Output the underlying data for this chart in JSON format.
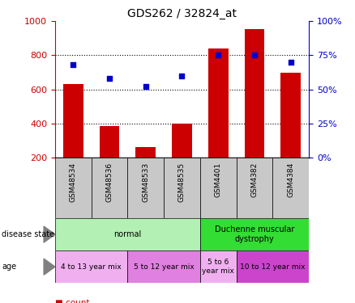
{
  "title": "GDS262 / 32824_at",
  "samples": [
    "GSM48534",
    "GSM48536",
    "GSM48533",
    "GSM48535",
    "GSM4401",
    "GSM4382",
    "GSM4384"
  ],
  "counts": [
    630,
    385,
    260,
    400,
    840,
    955,
    700
  ],
  "percentiles": [
    68,
    58,
    52,
    60,
    75,
    75,
    70
  ],
  "bar_color": "#cc0000",
  "dot_color": "#0000cc",
  "ylim_left": [
    200,
    1000
  ],
  "ylim_right": [
    0,
    100
  ],
  "yticks_left": [
    200,
    400,
    600,
    800,
    1000
  ],
  "yticks_right": [
    0,
    25,
    50,
    75,
    100
  ],
  "gridlines_at": [
    400,
    600,
    800
  ],
  "disease_state_groups": [
    {
      "label": "normal",
      "start": 0,
      "end": 4,
      "color": "#b3f0b3"
    },
    {
      "label": "Duchenne muscular\ndystrophy",
      "start": 4,
      "end": 7,
      "color": "#33dd33"
    }
  ],
  "age_groups": [
    {
      "label": "4 to 13 year mix",
      "start": 0,
      "end": 2,
      "color": "#f0b0f0"
    },
    {
      "label": "5 to 12 year mix",
      "start": 2,
      "end": 4,
      "color": "#e080e0"
    },
    {
      "label": "5 to 6\nyear mix",
      "start": 4,
      "end": 5,
      "color": "#f0b0f0"
    },
    {
      "label": "10 to 12 year mix",
      "start": 5,
      "end": 7,
      "color": "#cc44cc"
    }
  ],
  "legend_count_color": "#cc0000",
  "legend_percentile_color": "#0000cc",
  "bg_color": "#ffffff",
  "left_axis_color": "#cc0000",
  "right_axis_color": "#0000cc",
  "sample_bg_color": "#c8c8c8",
  "left_label_disease": "disease state",
  "left_label_age": "age",
  "bar_width": 0.55
}
